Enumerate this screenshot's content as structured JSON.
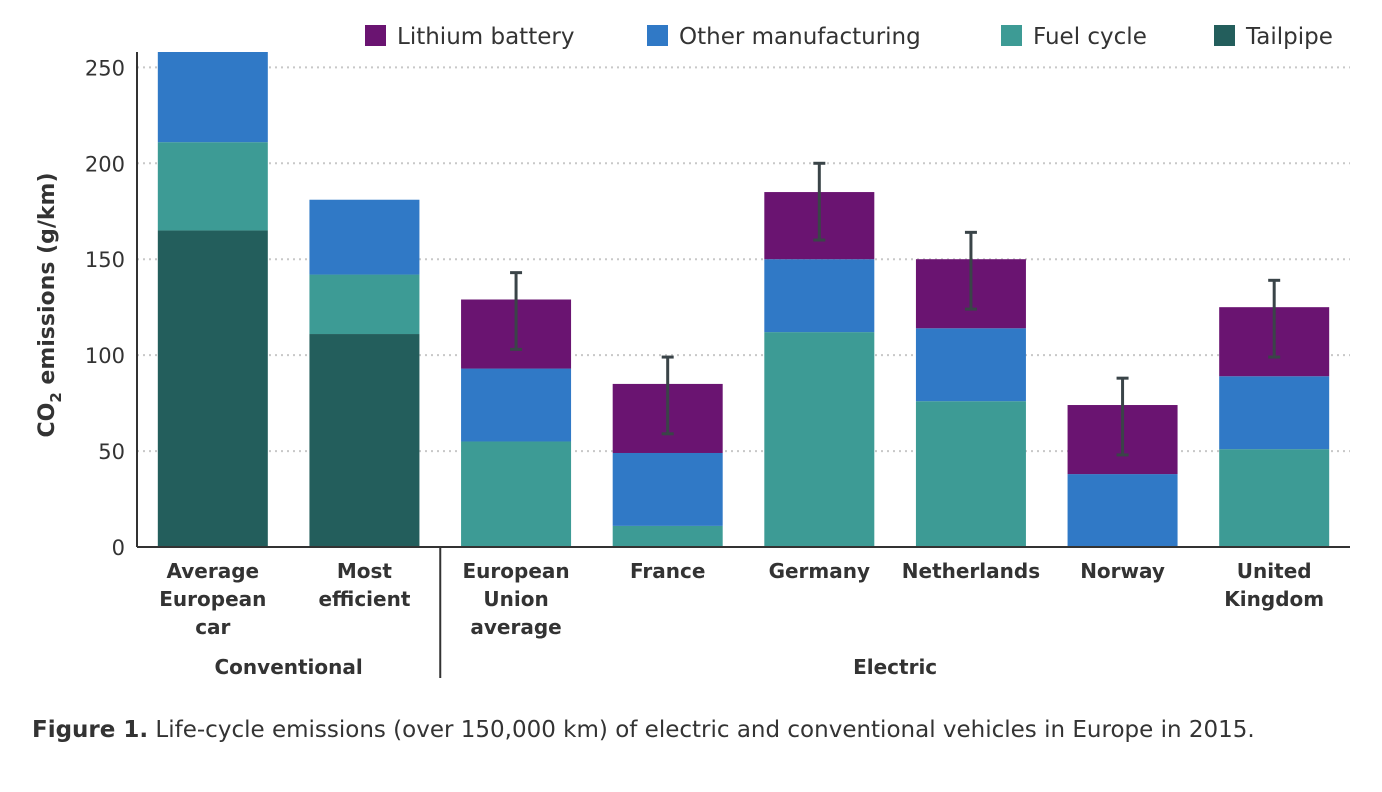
{
  "chart_data": {
    "type": "bar",
    "stacked": true,
    "categories": [
      [
        "Average",
        "European",
        "car"
      ],
      [
        "Most",
        "efficient"
      ],
      [
        "European",
        "Union",
        "average"
      ],
      [
        "France"
      ],
      [
        "Germany"
      ],
      [
        "Netherlands"
      ],
      [
        "Norway"
      ],
      [
        "United",
        "Kingdom"
      ]
    ],
    "groups": [
      {
        "label": "Conventional",
        "from": 0,
        "to": 1
      },
      {
        "label": "Electric",
        "from": 2,
        "to": 7
      }
    ],
    "ylabel_main": "CO",
    "ylabel_sub": "2",
    "ylabel_rest": " emissions (g/km)",
    "ylim": [
      0,
      258
    ],
    "yticks": [
      0,
      50,
      100,
      150,
      200,
      250
    ],
    "grid": "horizontal dotted",
    "legend_position": "top",
    "series": [
      {
        "name": "Tailpipe",
        "color": "#235e5c",
        "values": [
          165,
          111,
          0,
          0,
          0,
          0,
          0,
          0
        ]
      },
      {
        "name": "Fuel cycle",
        "color": "#3d9b95",
        "values": [
          46,
          31,
          55,
          11,
          112,
          76,
          0,
          51
        ]
      },
      {
        "name": "Other manufacturing",
        "color": "#3079c6",
        "values": [
          47,
          39,
          38,
          38,
          38,
          38,
          38,
          38
        ]
      },
      {
        "name": "Lithium battery",
        "color": "#6a1471",
        "values": [
          0,
          0,
          36,
          36,
          35,
          36,
          36,
          36
        ]
      }
    ],
    "legend_order": [
      "Lithium battery",
      "Other manufacturing",
      "Fuel cycle",
      "Tailpipe"
    ],
    "error_bars": [
      null,
      null,
      [
        103,
        143
      ],
      [
        59,
        99
      ],
      [
        160,
        200
      ],
      [
        124,
        164
      ],
      [
        48,
        88
      ],
      [
        99,
        139
      ]
    ]
  },
  "caption": {
    "label": "Figure 1.",
    "text": " Life-cycle emissions (over 150,000 km) of electric and conventional vehicles in Europe in 2015."
  }
}
